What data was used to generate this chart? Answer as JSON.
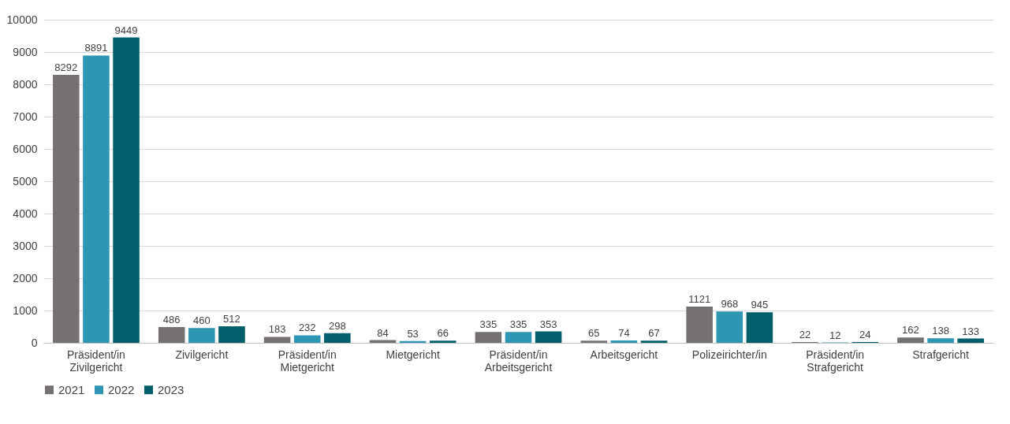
{
  "chart_data": {
    "type": "bar",
    "categories": [
      "Präsident/in Zivilgericht",
      "Zivilgericht",
      "Präsident/in Mietgericht",
      "Mietgericht",
      "Präsident/in Arbeitsgericht",
      "Arbeitsgericht",
      "Polizeirichter/in",
      "Präsident/in Strafgericht",
      "Strafgericht"
    ],
    "series": [
      {
        "name": "2021",
        "color": "#767171",
        "values": [
          8292,
          486,
          183,
          84,
          335,
          65,
          1121,
          22,
          162
        ]
      },
      {
        "name": "2022",
        "color": "#2e95b2",
        "values": [
          8891,
          460,
          232,
          53,
          335,
          74,
          968,
          12,
          138
        ]
      },
      {
        "name": "2023",
        "color": "#005f6b",
        "values": [
          9449,
          512,
          298,
          66,
          353,
          67,
          945,
          24,
          133
        ]
      }
    ],
    "ylim": [
      0,
      10000
    ],
    "yticks": [
      0,
      1000,
      2000,
      3000,
      4000,
      5000,
      6000,
      7000,
      8000,
      9000,
      10000
    ],
    "grid": "y",
    "legend": "bottom",
    "data_labels": true
  }
}
